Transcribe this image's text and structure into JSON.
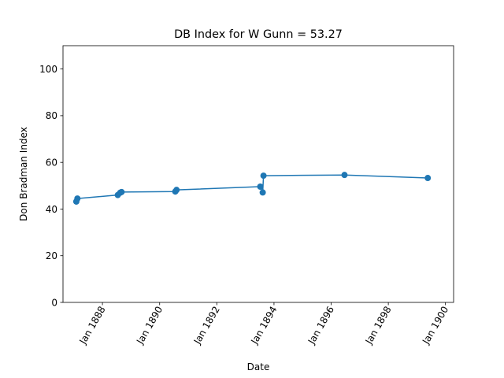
{
  "chart_data": {
    "type": "line",
    "title": "DB Index for W Gunn = 53.27",
    "xlabel": "Date",
    "ylabel": "Don Bradman Index",
    "ylim": [
      0,
      110
    ],
    "xlim": [
      "1886-08-15",
      "1900-04-15"
    ],
    "x_ticks": [
      {
        "date": "1888-01-01",
        "label": "Jan 1888"
      },
      {
        "date": "1890-01-01",
        "label": "Jan 1890"
      },
      {
        "date": "1892-01-01",
        "label": "Jan 1892"
      },
      {
        "date": "1894-01-01",
        "label": "Jan 1894"
      },
      {
        "date": "1896-01-01",
        "label": "Jan 1896"
      },
      {
        "date": "1898-01-01",
        "label": "Jan 1898"
      },
      {
        "date": "1900-01-01",
        "label": "Jan 1900"
      }
    ],
    "y_ticks": [
      0,
      20,
      40,
      60,
      80,
      100
    ],
    "grid": false,
    "series": [
      {
        "color": "#1f77b4",
        "points": [
          {
            "x": "1887-02-01",
            "y": 43.2
          },
          {
            "x": "1887-02-15",
            "y": 44.5
          },
          {
            "x": "1888-07-15",
            "y": 46.0
          },
          {
            "x": "1888-08-15",
            "y": 47.0
          },
          {
            "x": "1888-09-01",
            "y": 47.3
          },
          {
            "x": "1890-07-20",
            "y": 47.5
          },
          {
            "x": "1890-08-05",
            "y": 48.2
          },
          {
            "x": "1893-07-10",
            "y": 49.6
          },
          {
            "x": "1893-08-10",
            "y": 47.1
          },
          {
            "x": "1893-08-20",
            "y": 54.3
          },
          {
            "x": "1896-06-20",
            "y": 54.6
          },
          {
            "x": "1899-05-20",
            "y": 53.3
          }
        ]
      }
    ]
  }
}
